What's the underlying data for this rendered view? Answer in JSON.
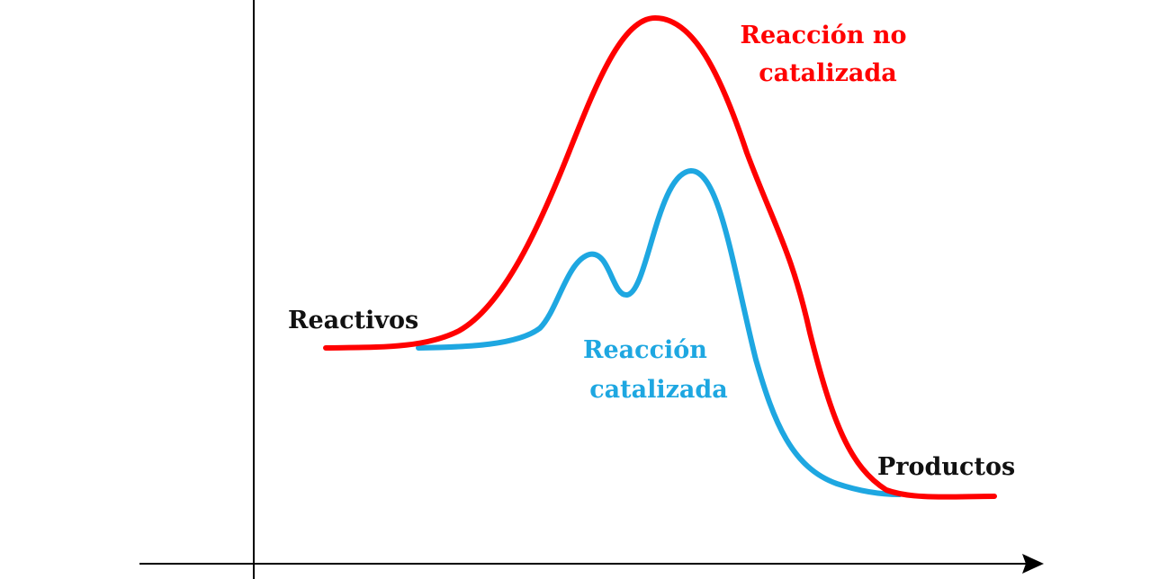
{
  "labels": {
    "reactants": "Reactivos",
    "products": "Productos",
    "uncatalyzed": [
      "Reacción no",
      "catalizada"
    ],
    "catalyzed": [
      "Reacción",
      "catalizada"
    ]
  }
}
